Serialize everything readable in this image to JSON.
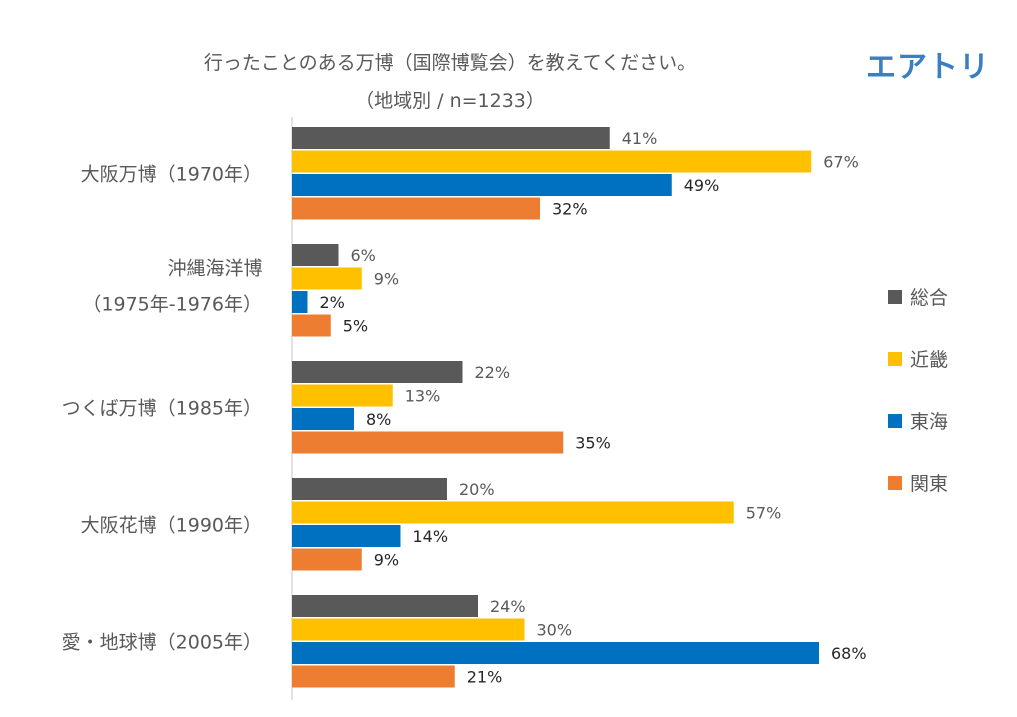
{
  "chart_data": {
    "type": "bar",
    "orientation": "horizontal",
    "title": "行ったことのある万博（国際博覧会）を教えてください。",
    "subtitle": "（地域別 / n=1233）",
    "categories": [
      [
        "大阪万博（1970年）"
      ],
      [
        "沖縄海洋博",
        "（1975年-1976年）"
      ],
      [
        "つくば万博（1985年）"
      ],
      [
        "大阪花博（1990年）"
      ],
      [
        "愛・地球博（2005年）"
      ]
    ],
    "series": [
      {
        "name": "総合",
        "color": "#595959",
        "values": [
          41,
          6,
          22,
          20,
          24
        ],
        "labels": [
          "41%",
          "6%",
          "22%",
          "20%",
          "24%"
        ]
      },
      {
        "name": "近畿",
        "color": "#ffc000",
        "values": [
          67,
          9,
          13,
          57,
          30
        ],
        "labels": [
          "67%",
          "9%",
          "13%",
          "57%",
          "30%"
        ]
      },
      {
        "name": "東海",
        "color": "#0070c0",
        "values": [
          49,
          2,
          8,
          14,
          68
        ],
        "labels": [
          "49%",
          "2%",
          "8%",
          "14%",
          "68%"
        ]
      },
      {
        "name": "関東",
        "color": "#ed7d31",
        "values": [
          32,
          5,
          35,
          9,
          21
        ],
        "labels": [
          "32%",
          "5%",
          "35%",
          "9%",
          "21%"
        ]
      }
    ],
    "xlim": [
      0,
      68
    ],
    "grid": false,
    "legend": "right"
  },
  "brand": {
    "logo_text": "エアトリ",
    "color": "#3a7fc1"
  }
}
